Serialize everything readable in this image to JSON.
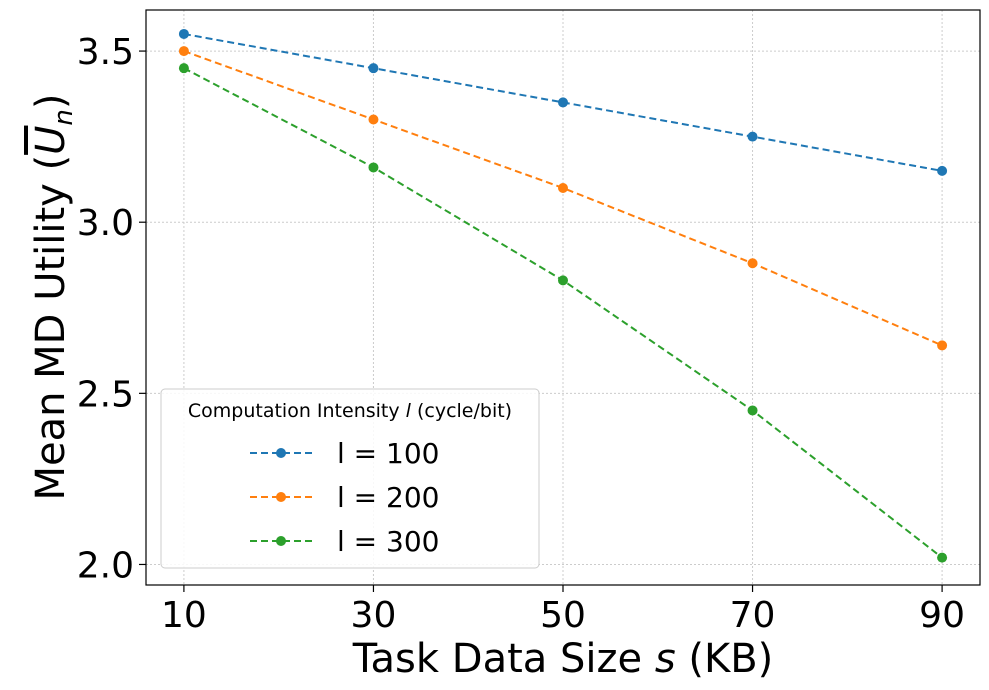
{
  "chart_data": {
    "type": "line",
    "title": "",
    "xlabel": "Task Data Size s (KB)",
    "xlabel_parts": {
      "main": "Task Data Size ",
      "var": "s",
      "unit": " (KB)"
    },
    "ylabel": "Mean MD Utility (Un)",
    "ylabel_parts": {
      "main": "Mean MD Utility (",
      "var": "U",
      "sub": "n",
      "close": ")"
    },
    "x": [
      10,
      30,
      50,
      70,
      90
    ],
    "x_ticks": [
      "10",
      "30",
      "50",
      "70",
      "90"
    ],
    "y_ticks": [
      2.0,
      2.5,
      3.0,
      3.5
    ],
    "y_tick_labels": [
      "2.0",
      "2.5",
      "3.0",
      "3.5"
    ],
    "xlim": [
      6,
      94
    ],
    "ylim": [
      1.94,
      3.62
    ],
    "grid": true,
    "legend": {
      "placement": "lower-left",
      "title_parts": {
        "main": "Computation Intensity ",
        "var": "l",
        "unit": " (cycle/bit)"
      }
    },
    "series": [
      {
        "name": "l = 100",
        "color": "#1f77b4",
        "values": [
          3.55,
          3.45,
          3.35,
          3.25,
          3.15
        ]
      },
      {
        "name": "l = 200",
        "color": "#ff7f0e",
        "values": [
          3.5,
          3.3,
          3.1,
          2.88,
          2.64
        ]
      },
      {
        "name": "l = 300",
        "color": "#2ca02c",
        "values": [
          3.45,
          3.16,
          2.83,
          2.45,
          2.02
        ]
      }
    ]
  }
}
